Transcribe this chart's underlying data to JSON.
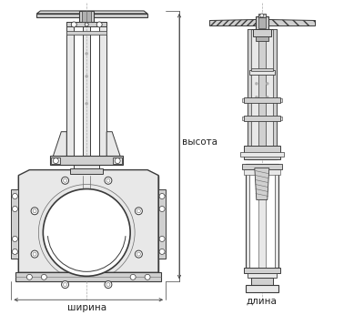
{
  "bg_color": "#ffffff",
  "lc": "#3a3a3a",
  "lc_thin": "#6a6a6a",
  "dim_color": "#444444",
  "text_color": "#222222",
  "label_wysota": "высота",
  "label_shirina": "ширина",
  "label_dlina": "длина",
  "fig_width": 4.0,
  "fig_height": 3.46,
  "dpi": 100
}
